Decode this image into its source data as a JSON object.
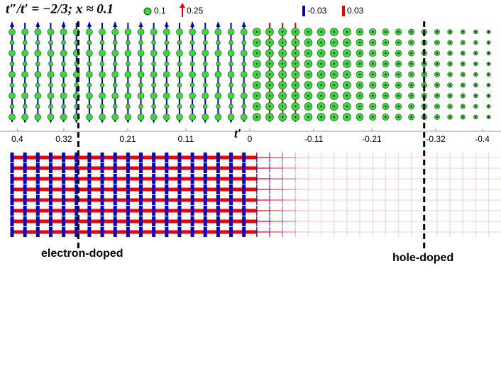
{
  "chart_data": {
    "type": "lattice",
    "title": "t″/t′ = −2/3; x ≈ 0.1",
    "xlabel": "t′",
    "xlim": [
      0.42,
      -0.42
    ],
    "xticks": [
      0.4,
      0.32,
      0.21,
      0.11,
      0,
      -0.11,
      -0.21,
      -0.32,
      -0.4
    ],
    "legend": {
      "charge": 0.1,
      "spin": 0.25,
      "bond_neg": -0.03,
      "bond_pos": 0.03
    },
    "boundaries": [
      0.295,
      -0.3
    ],
    "regions": [
      "electron-doped",
      "hole-doped"
    ]
  }
}
